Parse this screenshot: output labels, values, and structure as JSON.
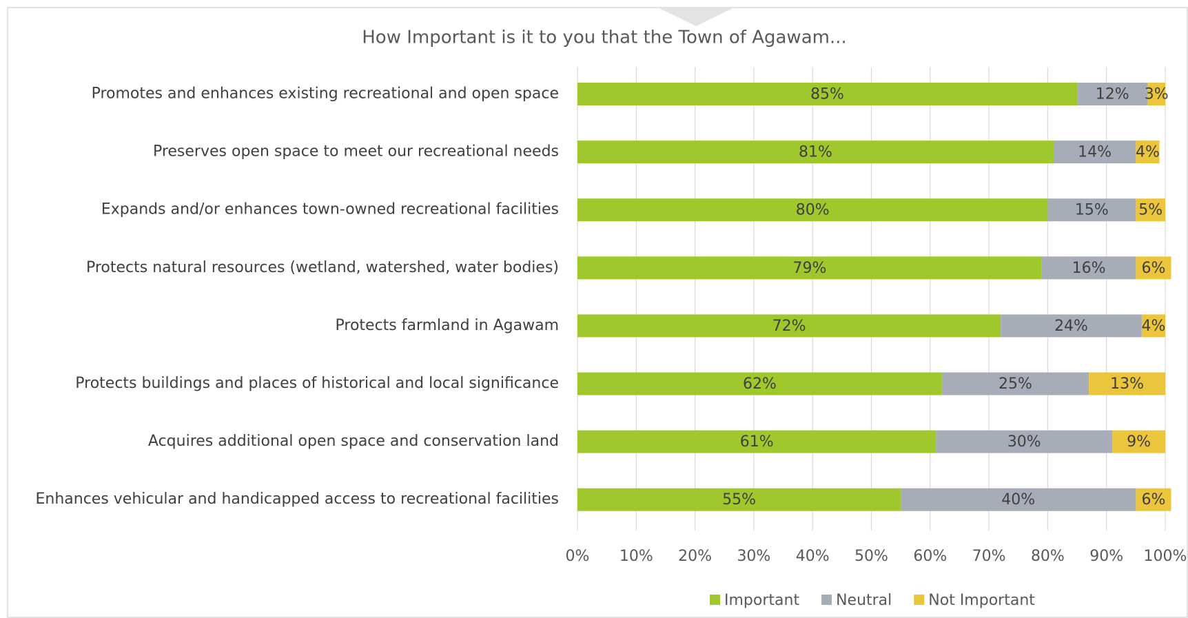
{
  "chart_data": {
    "type": "stacked_barh",
    "title": "How Important is it to you that the Town of Agawam...",
    "categories": [
      "Promotes and enhances existing recreational and open space",
      "Preserves open space to meet our recreational needs",
      "Expands and/or enhances town-owned recreational facilities",
      "Protects natural resources (wetland, watershed, water bodies)",
      "Protects farmland in Agawam",
      "Protects buildings and places of historical and local significance",
      "Acquires additional open space and conservation land",
      "Enhances vehicular and handicapped access to recreational facilities"
    ],
    "series": [
      {
        "name": "Important",
        "color": "#9fc82c",
        "values": [
          85,
          81,
          80,
          79,
          72,
          62,
          61,
          55
        ],
        "value_labels": [
          "85%",
          "81%",
          "80%",
          "79%",
          "72%",
          "62%",
          "61%",
          "55%"
        ]
      },
      {
        "name": "Neutral",
        "color": "#a6adb8",
        "values": [
          12,
          14,
          15,
          16,
          24,
          25,
          30,
          40
        ],
        "value_labels": [
          "12%",
          "14%",
          "15%",
          "16%",
          "24%",
          "25%",
          "30%",
          "40%"
        ]
      },
      {
        "name": "Not Important",
        "color": "#ebc53c",
        "values": [
          3,
          4,
          5,
          6,
          4,
          13,
          9,
          6
        ],
        "value_labels": [
          "3%",
          "4%",
          "5%",
          "6%",
          "4%",
          "13%",
          "9%",
          "6%"
        ]
      }
    ],
    "xlim": [
      0,
      100
    ],
    "xticks": [
      {
        "value": 0,
        "label": "0%"
      },
      {
        "value": 10,
        "label": "10%"
      },
      {
        "value": 20,
        "label": "20%"
      },
      {
        "value": 30,
        "label": "30%"
      },
      {
        "value": 40,
        "label": "40%"
      },
      {
        "value": 50,
        "label": "50%"
      },
      {
        "value": 60,
        "label": "60%"
      },
      {
        "value": 70,
        "label": "70%"
      },
      {
        "value": 80,
        "label": "80%"
      },
      {
        "value": 90,
        "label": "90%"
      },
      {
        "value": 100,
        "label": "100%"
      }
    ],
    "grid": true,
    "legend": "bottom"
  }
}
